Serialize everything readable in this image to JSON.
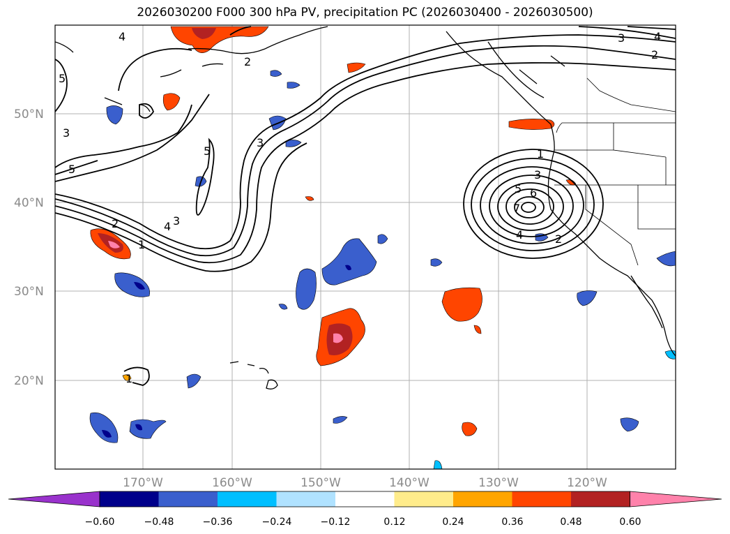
{
  "title": "2026030200 F000 300 hPa PV, precipitation PC (2026030400 - 2026030500)",
  "map": {
    "lat_labels": [
      "50°N",
      "40°N",
      "30°N",
      "20°N"
    ],
    "lon_labels": [
      "170°W",
      "160°W",
      "150°W",
      "140°W",
      "130°W",
      "120°W"
    ],
    "pv_contour_labels": [
      "4",
      "3",
      "2",
      "4",
      "5",
      "5",
      "5",
      "3",
      "3",
      "2",
      "1",
      "4",
      "1",
      "2",
      "1",
      "3",
      "5",
      "6",
      "7",
      "4",
      "2",
      "3"
    ]
  },
  "colorbar": {
    "ticks": [
      "−0.60",
      "−0.48",
      "−0.36",
      "−0.24",
      "−0.12",
      "0.12",
      "0.24",
      "0.36",
      "0.48",
      "0.60"
    ],
    "colors": [
      "#9932cc",
      "#00008b",
      "#3a5fcd",
      "#00bfff",
      "#b0e2ff",
      "#ffffff",
      "#ffec8b",
      "#ffa500",
      "#ff4500",
      "#b22222",
      "#ff82ab"
    ]
  }
}
